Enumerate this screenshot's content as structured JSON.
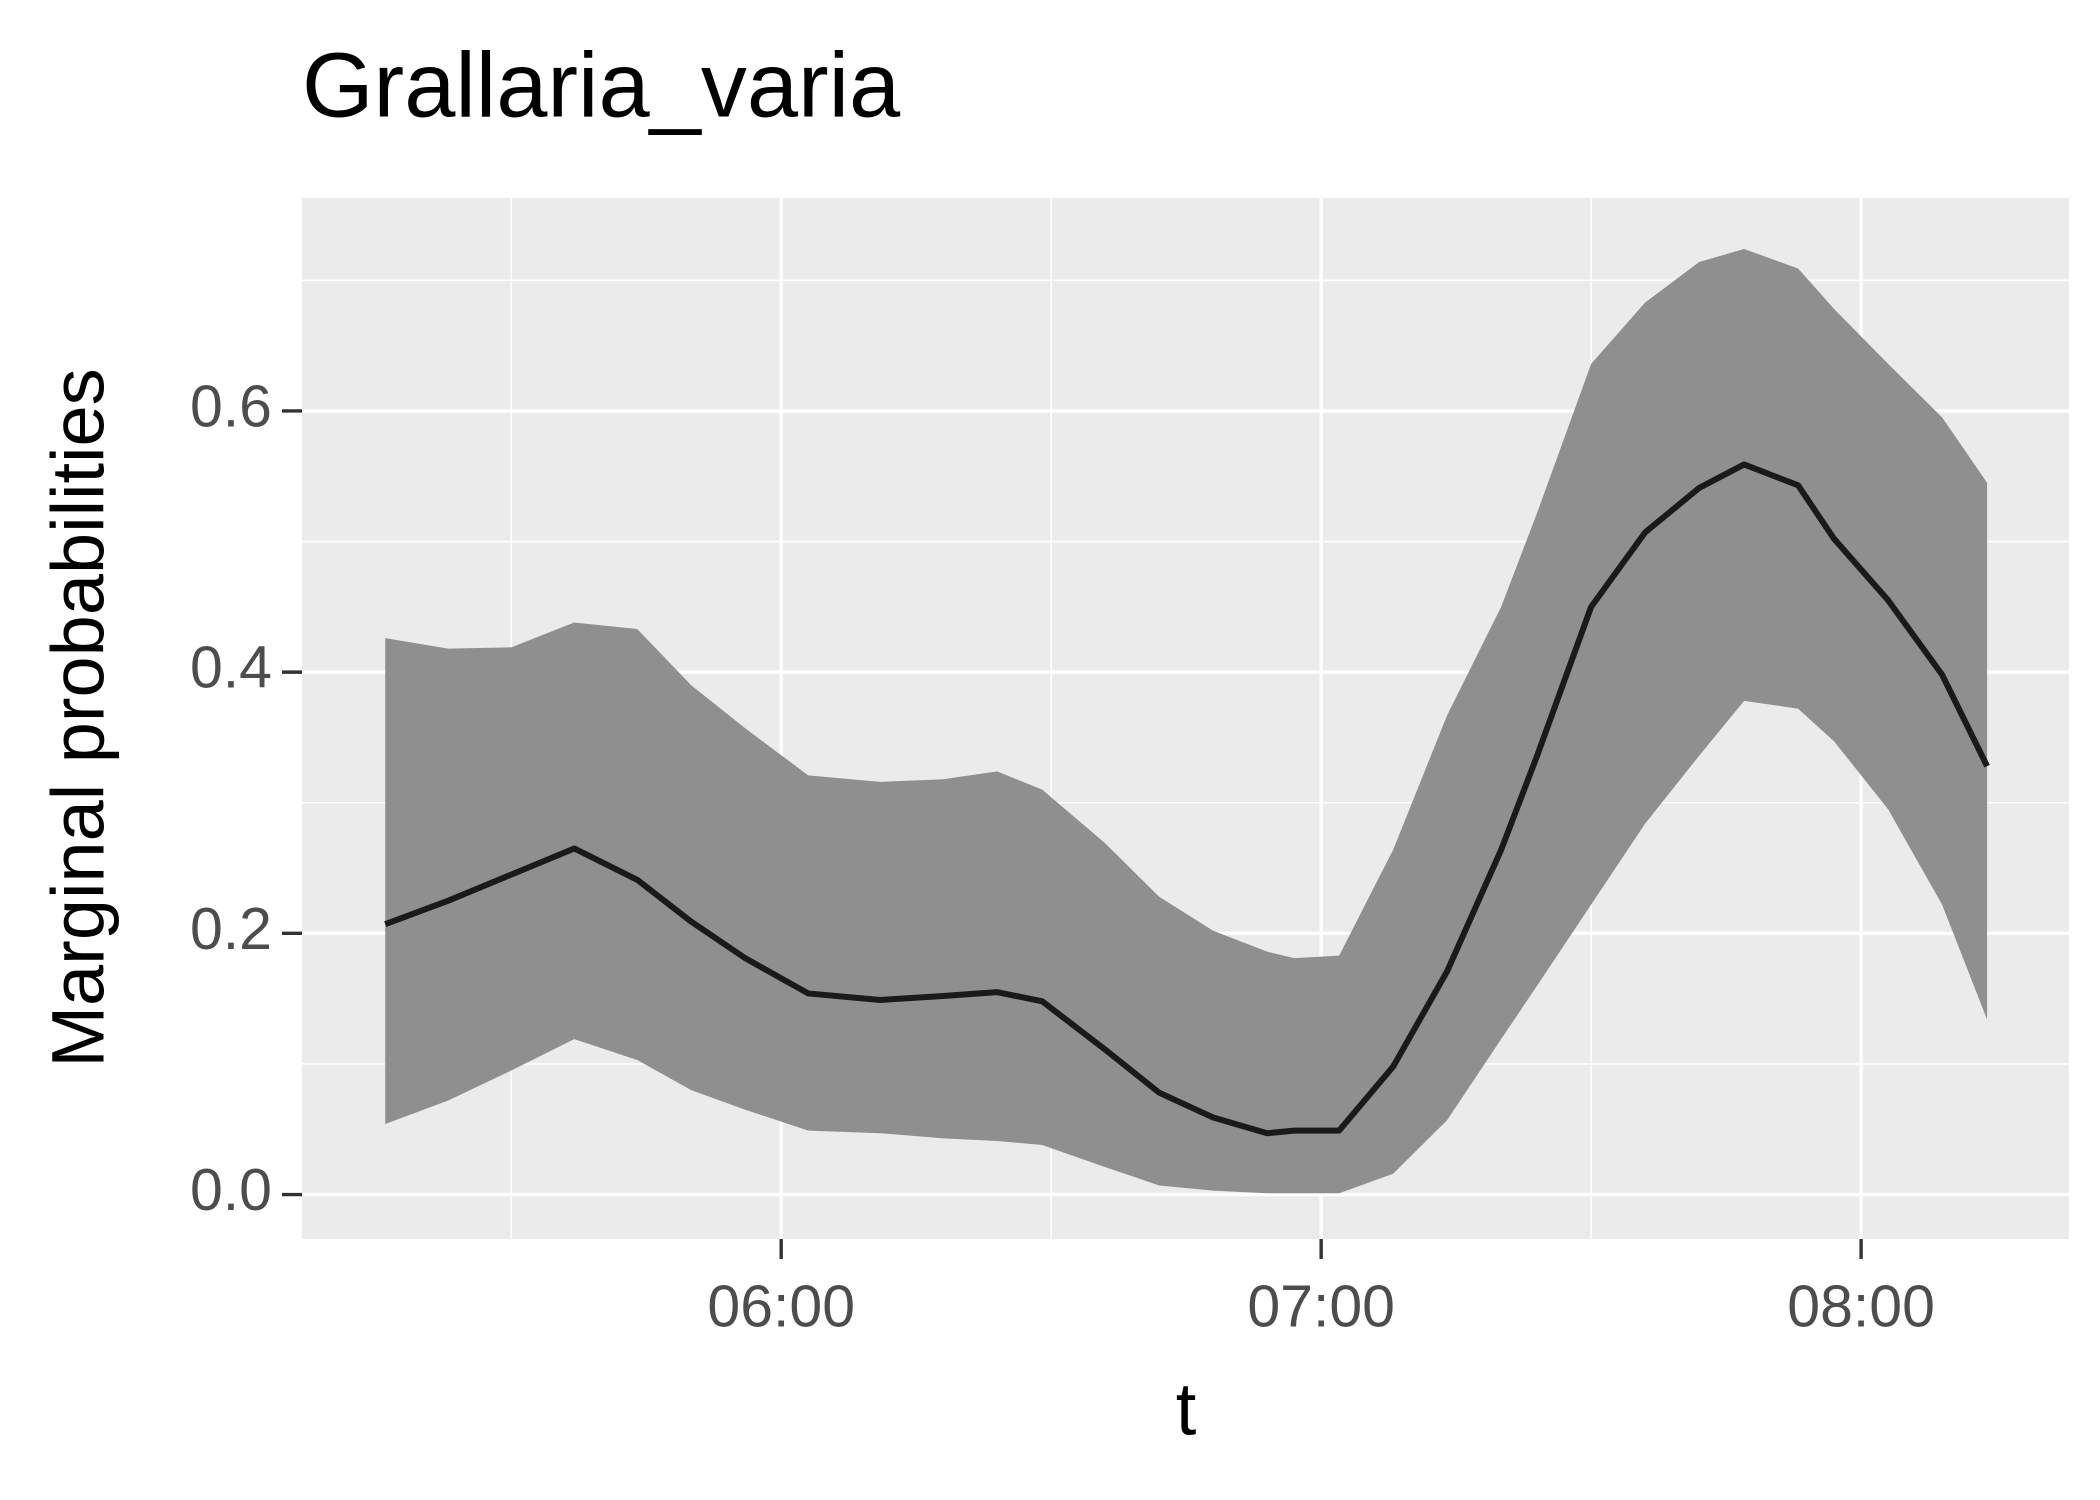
{
  "chart_data": {
    "type": "ribbon-line",
    "title": "Grallaria_varia",
    "x_label": "t",
    "y_label": "Marginal probabilities",
    "x": [
      316,
      323,
      330,
      337,
      344,
      350,
      356,
      363,
      371,
      378,
      384,
      389,
      396,
      402,
      408,
      414,
      417,
      422,
      428,
      434,
      440,
      444,
      450,
      456,
      462,
      467,
      473,
      477,
      483,
      489,
      494
    ],
    "y": [
      0.207,
      0.225,
      0.245,
      0.265,
      0.241,
      0.209,
      0.181,
      0.154,
      0.149,
      0.152,
      0.155,
      0.148,
      0.111,
      0.078,
      0.059,
      0.047,
      0.049,
      0.049,
      0.098,
      0.171,
      0.264,
      0.336,
      0.45,
      0.507,
      0.541,
      0.559,
      0.543,
      0.502,
      0.455,
      0.398,
      0.328
    ],
    "ymin": [
      0.054,
      0.072,
      0.095,
      0.119,
      0.103,
      0.08,
      0.065,
      0.049,
      0.047,
      0.043,
      0.041,
      0.038,
      0.021,
      0.007,
      0.003,
      0.001,
      0.001,
      0.001,
      0.016,
      0.057,
      0.119,
      0.16,
      0.222,
      0.284,
      0.336,
      0.378,
      0.372,
      0.347,
      0.295,
      0.222,
      0.134
    ],
    "ymax": [
      0.426,
      0.418,
      0.419,
      0.438,
      0.433,
      0.39,
      0.357,
      0.321,
      0.316,
      0.318,
      0.324,
      0.31,
      0.269,
      0.228,
      0.202,
      0.186,
      0.181,
      0.183,
      0.264,
      0.367,
      0.45,
      0.522,
      0.636,
      0.683,
      0.714,
      0.724,
      0.709,
      0.678,
      0.636,
      0.595,
      0.545
    ],
    "line_color": "#1a1a1a",
    "ribbon_color": "#8f8f8f",
    "xlim": [
      306.75,
      503.1
    ],
    "ylim": [
      -0.034,
      0.763
    ],
    "xticks": [
      {
        "value": 360,
        "label": "06:00"
      },
      {
        "value": 420,
        "label": "07:00"
      },
      {
        "value": 480,
        "label": "08:00"
      }
    ],
    "yticks": [
      {
        "value": 0,
        "label": "0.0"
      },
      0.2,
      0.4,
      0.6
    ],
    "grid": true
  }
}
